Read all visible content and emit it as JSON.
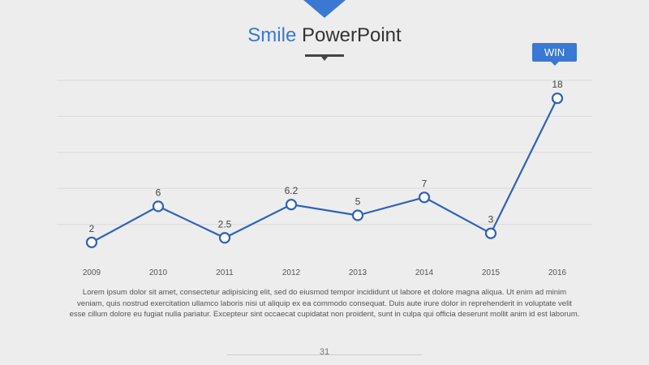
{
  "slide": {
    "title_accent": "Smile",
    "title_main": "PowerPoint",
    "badge": "WIN",
    "body_text": "Lorem ipsum dolor sit amet, consectetur adipisicing elit, sed do eiusmod tempor incididunt ut labore et dolore magna aliqua. Ut enim ad minim veniam, quis nostrud exercitation ullamco laboris nisi ut aliquip ex ea commodo consequat. Duis aute irure dolor in reprehenderit in voluptate velit esse cillum dolore eu fugiat nulla pariatur. Excepteur sint occaecat cupidatat non proident, sunt in culpa qui officia deserunt mollit anim id est laborum.",
    "page_number": "31",
    "accent_color": "#3a78d4"
  },
  "chart_data": {
    "type": "line",
    "title": "",
    "xlabel": "",
    "ylabel": "",
    "categories": [
      "2009",
      "2010",
      "2011",
      "2012",
      "2013",
      "2014",
      "2015",
      "2016"
    ],
    "values": [
      2,
      6,
      2.5,
      6.2,
      5,
      7,
      3,
      18
    ],
    "ylim": [
      0,
      20
    ],
    "grid": true,
    "color": "#2f62b8"
  }
}
